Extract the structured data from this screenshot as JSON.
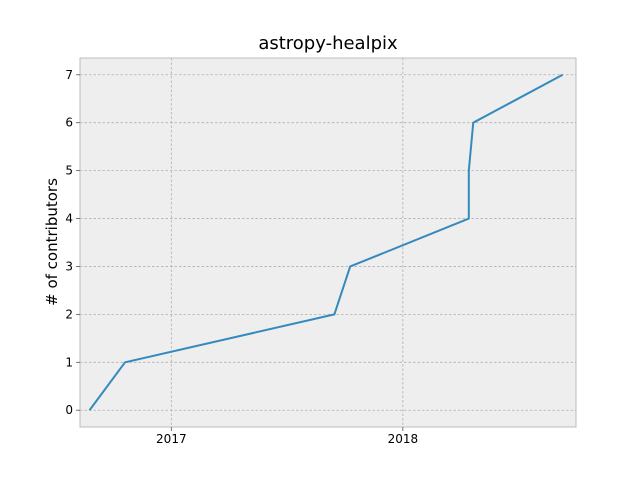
{
  "chart_data": {
    "type": "line",
    "title": "astropy-healpix",
    "xlabel": "",
    "ylabel": "# of contributors",
    "x_type": "date",
    "xlim": [
      "2016-08-10",
      "2018-10-01"
    ],
    "ylim": [
      -0.35,
      7.35
    ],
    "xticks": [
      {
        "value": "2017-01-01",
        "label": "2017"
      },
      {
        "value": "2018-01-01",
        "label": "2018"
      }
    ],
    "yticks": [
      0,
      1,
      2,
      3,
      4,
      5,
      6,
      7
    ],
    "grid": true,
    "colors": {
      "line": "#348abd",
      "plot_background": "#eeeeee",
      "grid": "#b0b0b0"
    },
    "series": [
      {
        "x": [
          "2016-08-25",
          "2016-10-20",
          "2017-09-15",
          "2017-10-10",
          "2018-04-15",
          "2018-04-15",
          "2018-04-22",
          "2018-09-10"
        ],
        "y": [
          0,
          1,
          2,
          3,
          4,
          5,
          6,
          7
        ]
      }
    ]
  }
}
